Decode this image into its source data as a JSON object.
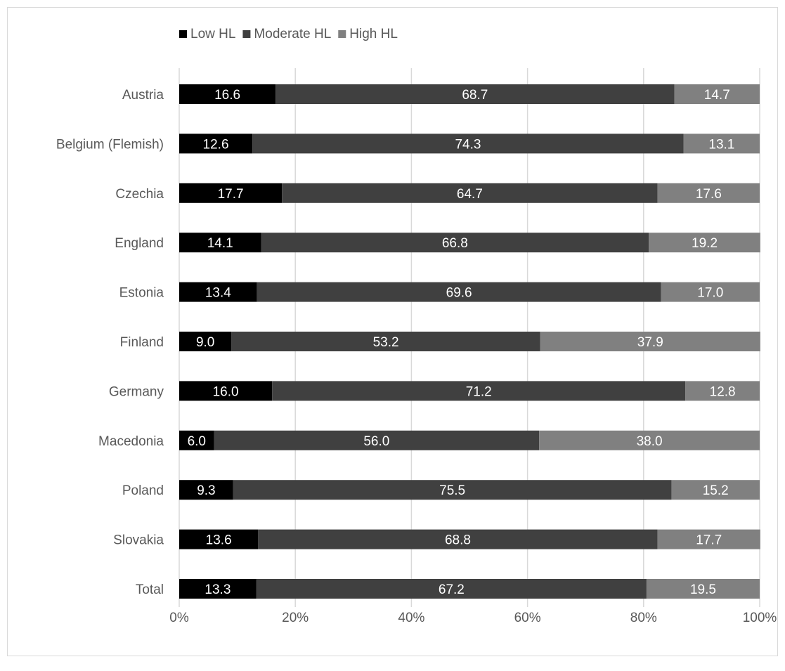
{
  "chart_data": {
    "type": "bar",
    "orientation": "horizontal",
    "stacked": "percent",
    "categories": [
      "Austria",
      "Belgium (Flemish)",
      "Czechia",
      "England",
      "Estonia",
      "Finland",
      "Germany",
      "Macedonia",
      "Poland",
      "Slovakia",
      "Total"
    ],
    "series": [
      {
        "name": "Low HL",
        "color": "#000000",
        "values": [
          16.6,
          12.6,
          17.7,
          14.1,
          13.4,
          9.0,
          16.0,
          6.0,
          9.3,
          13.6,
          13.3
        ]
      },
      {
        "name": "Moderate HL",
        "color": "#404040",
        "values": [
          68.7,
          74.3,
          64.7,
          66.8,
          69.6,
          53.2,
          71.2,
          56.0,
          75.5,
          68.8,
          67.2
        ]
      },
      {
        "name": "High HL",
        "color": "#808080",
        "values": [
          14.7,
          13.1,
          17.6,
          19.2,
          17.0,
          37.9,
          12.8,
          38.0,
          15.2,
          17.7,
          19.5
        ]
      }
    ],
    "xlim": [
      0,
      100
    ],
    "xticks": [
      0,
      20,
      40,
      60,
      80,
      100
    ],
    "tick_suffix": "%",
    "grid": true,
    "legend": "top-left",
    "title": "",
    "xlabel": "",
    "ylabel": "",
    "gridColor": "#d9d9d9",
    "textColor": "#595959"
  }
}
